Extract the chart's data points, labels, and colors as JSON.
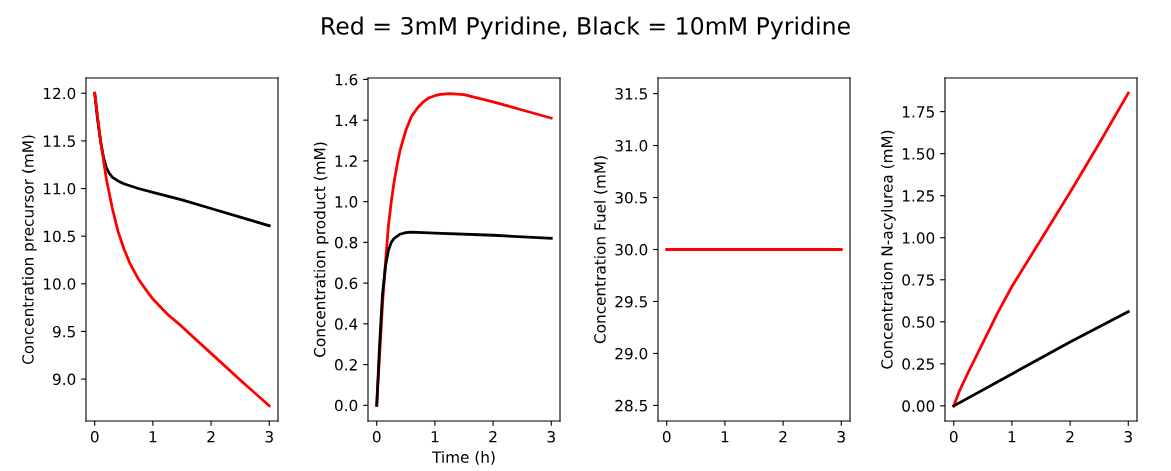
{
  "chart_data": [
    {
      "type": "line",
      "ylabel": "Concentration precursor (mM)",
      "xlim": [
        -0.15,
        3.15
      ],
      "xticks": [
        0,
        1,
        2,
        3
      ],
      "ylim": [
        8.56,
        12.16
      ],
      "yticks": [
        {
          "value": 9,
          "label": "9.0"
        },
        {
          "value": 9.5,
          "label": "9.5"
        },
        {
          "value": 10,
          "label": "10.0"
        },
        {
          "value": 10.5,
          "label": "10.5"
        },
        {
          "value": 11,
          "label": "11.0"
        },
        {
          "value": 11.5,
          "label": "11.5"
        },
        {
          "value": 12,
          "label": "12.0"
        }
      ],
      "grid": false,
      "legend": false,
      "series": [
        {
          "color": "#000000",
          "x": [
            0,
            0.05,
            0.1,
            0.15,
            0.2,
            0.25,
            0.3,
            0.4,
            0.5,
            0.75,
            1,
            1.5,
            2,
            2.5,
            3
          ],
          "values": [
            12.0,
            11.72,
            11.5,
            11.33,
            11.22,
            11.16,
            11.12,
            11.08,
            11.05,
            11.0,
            10.96,
            10.88,
            10.79,
            10.7,
            10.61
          ]
        },
        {
          "color": "#ff0000",
          "x": [
            0,
            0.05,
            0.1,
            0.15,
            0.2,
            0.3,
            0.4,
            0.5,
            0.6,
            0.75,
            0.9,
            1,
            1.25,
            1.5,
            2,
            2.5,
            3
          ],
          "values": [
            12.0,
            11.75,
            11.5,
            11.3,
            11.1,
            10.8,
            10.55,
            10.37,
            10.22,
            10.05,
            9.92,
            9.84,
            9.68,
            9.55,
            9.27,
            8.99,
            8.72
          ]
        }
      ]
    },
    {
      "type": "line",
      "title": "Red = 3mM Pyridine, Black = 10mM Pyridine",
      "xlabel": "Time (h)",
      "ylabel": "Concentration product (mM)",
      "xlim": [
        -0.15,
        3.15
      ],
      "xticks": [
        0,
        1,
        2,
        3
      ],
      "ylim": [
        -0.077,
        1.607
      ],
      "yticks": [
        {
          "value": 0,
          "label": "0.0"
        },
        {
          "value": 0.2,
          "label": "0.2"
        },
        {
          "value": 0.4,
          "label": "0.4"
        },
        {
          "value": 0.6,
          "label": "0.6"
        },
        {
          "value": 0.8,
          "label": "0.8"
        },
        {
          "value": 1,
          "label": "1.0"
        },
        {
          "value": 1.2,
          "label": "1.2"
        },
        {
          "value": 1.4,
          "label": "1.4"
        },
        {
          "value": 1.6,
          "label": "1.6"
        }
      ],
      "grid": false,
      "legend": false,
      "series": [
        {
          "color": "#ff0000",
          "x": [
            0,
            0.05,
            0.1,
            0.15,
            0.2,
            0.25,
            0.3,
            0.35,
            0.4,
            0.5,
            0.6,
            0.7,
            0.8,
            0.9,
            1,
            1.1,
            1.25,
            1.5,
            2,
            2.5,
            3
          ],
          "values": [
            0,
            0.25,
            0.5,
            0.7,
            0.88,
            1.0,
            1.1,
            1.18,
            1.25,
            1.35,
            1.42,
            1.46,
            1.49,
            1.51,
            1.52,
            1.527,
            1.53,
            1.525,
            1.49,
            1.45,
            1.41
          ]
        },
        {
          "color": "#000000",
          "x": [
            0,
            0.05,
            0.1,
            0.15,
            0.2,
            0.25,
            0.3,
            0.4,
            0.5,
            0.6,
            1,
            2,
            3
          ],
          "values": [
            0,
            0.3,
            0.55,
            0.68,
            0.76,
            0.8,
            0.82,
            0.84,
            0.848,
            0.85,
            0.845,
            0.835,
            0.82
          ]
        }
      ]
    },
    {
      "type": "line",
      "ylabel": "Concentration Fuel (mM)",
      "xlim": [
        -0.15,
        3.15
      ],
      "xticks": [
        0,
        1,
        2,
        3
      ],
      "ylim": [
        28.35,
        31.65
      ],
      "yticks": [
        {
          "value": 28.5,
          "label": "28.5"
        },
        {
          "value": 29,
          "label": "29.0"
        },
        {
          "value": 29.5,
          "label": "29.5"
        },
        {
          "value": 30,
          "label": "30.0"
        },
        {
          "value": 30.5,
          "label": "30.5"
        },
        {
          "value": 31,
          "label": "31.0"
        },
        {
          "value": 31.5,
          "label": "31.5"
        }
      ],
      "grid": false,
      "legend": false,
      "series": [
        {
          "color": "#ff0000",
          "x": [
            0,
            3
          ],
          "values": [
            30,
            30
          ]
        }
      ]
    },
    {
      "type": "line",
      "ylabel": "Concentration N-acylurea (mM)",
      "xlim": [
        -0.15,
        3.15
      ],
      "xticks": [
        0,
        1,
        2,
        3
      ],
      "ylim": [
        -0.09,
        1.95
      ],
      "yticks": [
        {
          "value": 0,
          "label": "0.00"
        },
        {
          "value": 0.25,
          "label": "0.25"
        },
        {
          "value": 0.5,
          "label": "0.50"
        },
        {
          "value": 0.75,
          "label": "0.75"
        },
        {
          "value": 1,
          "label": "1.00"
        },
        {
          "value": 1.25,
          "label": "1.25"
        },
        {
          "value": 1.5,
          "label": "1.50"
        },
        {
          "value": 1.75,
          "label": "1.75"
        }
      ],
      "grid": false,
      "legend": false,
      "series": [
        {
          "color": "#ff0000",
          "x": [
            0,
            0.1,
            0.25,
            0.5,
            0.75,
            1,
            1.5,
            2,
            2.5,
            3
          ],
          "values": [
            0,
            0.09,
            0.2,
            0.375,
            0.55,
            0.71,
            0.99,
            1.27,
            1.56,
            1.86
          ]
        },
        {
          "color": "#000000",
          "x": [
            0,
            1,
            2,
            3
          ],
          "values": [
            0,
            0.19,
            0.38,
            0.56
          ]
        }
      ]
    }
  ]
}
